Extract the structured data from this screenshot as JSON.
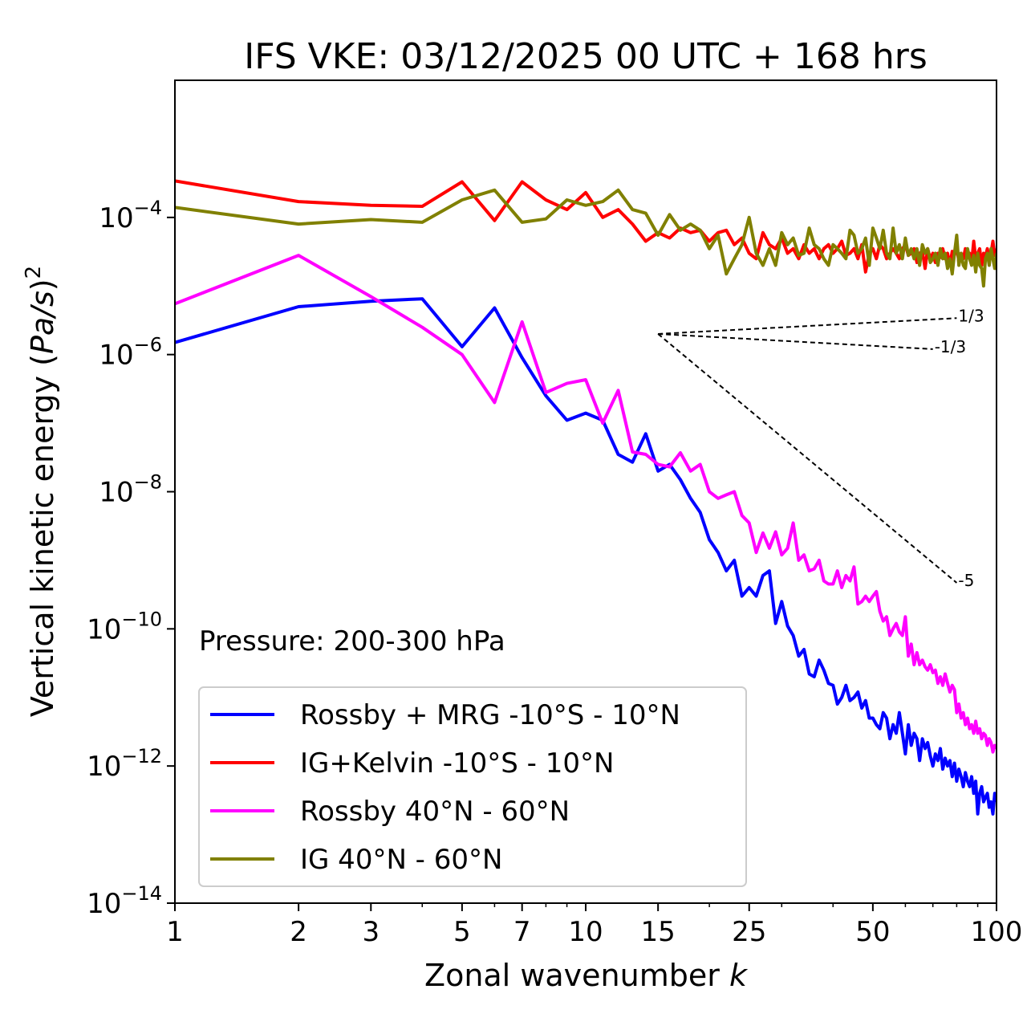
{
  "chart_data": {
    "type": "line",
    "title": "IFS VKE: 03/12/2025 00 UTC + 168 hrs",
    "xlabel_main": "Zonal wavenumber ",
    "xlabel_var": "k",
    "ylabel_main": "Vertical kinetic energy (",
    "ylabel_var": "Pa/s",
    "ylabel_close": ")",
    "ylabel_exp": "2",
    "annotation": "Pressure: 200-300 hPa",
    "x_scale": "log",
    "y_scale": "log",
    "xlim": [
      1,
      100
    ],
    "ylim": [
      1e-14,
      0.01
    ],
    "x_ticks": [
      {
        "value": 1,
        "label": "1"
      },
      {
        "value": 2,
        "label": "2"
      },
      {
        "value": 3,
        "label": "3"
      },
      {
        "value": 5,
        "label": "5"
      },
      {
        "value": 7,
        "label": "7"
      },
      {
        "value": 10,
        "label": "10"
      },
      {
        "value": 15,
        "label": "15"
      },
      {
        "value": 25,
        "label": "25"
      },
      {
        "value": 50,
        "label": "50"
      },
      {
        "value": 100,
        "label": "100"
      }
    ],
    "y_ticks": [
      {
        "value": 0.0001,
        "base": "10",
        "exp": "−4"
      },
      {
        "value": 1e-06,
        "base": "10",
        "exp": "−6"
      },
      {
        "value": 1e-08,
        "base": "10",
        "exp": "−8"
      },
      {
        "value": 1e-10,
        "base": "10",
        "exp": "−10"
      },
      {
        "value": 1e-12,
        "base": "10",
        "exp": "−12"
      },
      {
        "value": 1e-14,
        "base": "10",
        "exp": "−14"
      }
    ],
    "legend_position": "lower-left",
    "series": [
      {
        "name": "Rossby + MRG -10°S - 10°N",
        "color": "#0000ff",
        "x": [
          1,
          2,
          3,
          4,
          5,
          6,
          7,
          8,
          9,
          10,
          11,
          12,
          13,
          14,
          15,
          16,
          17,
          18,
          19,
          20,
          21,
          22,
          23,
          24,
          25,
          26,
          27,
          28,
          29,
          30,
          31,
          32,
          33,
          34,
          35,
          36,
          37,
          38,
          39,
          40,
          41,
          42,
          43,
          44,
          45,
          46,
          47,
          48,
          49,
          50,
          51,
          52,
          53,
          54,
          55,
          56,
          57,
          58,
          59,
          60,
          61,
          62,
          63,
          64,
          65,
          66,
          67,
          68,
          69,
          70,
          71,
          72,
          73,
          74,
          75,
          76,
          77,
          78,
          79,
          80,
          81,
          82,
          83,
          84,
          85,
          86,
          87,
          88,
          89,
          90,
          91,
          92,
          93,
          94,
          95,
          96,
          97,
          98,
          99,
          100
        ],
        "y": [
          1.5e-06,
          5e-06,
          6e-06,
          6.5e-06,
          1.3e-06,
          4.8e-06,
          9e-07,
          2.5e-07,
          1.1e-07,
          1.4e-07,
          1.1e-07,
          3.5e-08,
          2.7e-08,
          7e-08,
          2e-08,
          2.5e-08,
          1.5e-08,
          8e-09,
          5e-09,
          2e-09,
          1.3e-09,
          7e-10,
          1e-09,
          3e-10,
          4e-10,
          3e-10,
          6e-10,
          7e-10,
          1.2e-10,
          2.5e-10,
          1.1e-10,
          8e-11,
          4e-11,
          5e-11,
          2.2e-11,
          2e-11,
          3.5e-11,
          2.5e-11,
          1.6e-11,
          1.5e-11,
          8e-12,
          1e-11,
          1.5e-11,
          9e-12,
          1e-11,
          1.2e-11,
          7e-12,
          9e-12,
          5e-12,
          5e-12,
          4e-12,
          3.5e-12,
          6e-12,
          5e-12,
          2.5e-12,
          4e-12,
          3e-12,
          6e-12,
          3e-12,
          1.5e-12,
          4e-12,
          2e-12,
          3e-12,
          2.5e-12,
          1.2e-12,
          2.5e-12,
          1.8e-12,
          2.2e-12,
          1.4e-12,
          1e-12,
          1.5e-12,
          1.2e-12,
          1.8e-12,
          9e-13,
          1.3e-12,
          1e-12,
          1.2e-12,
          7e-13,
          1.1e-12,
          6e-13,
          9e-13,
          7e-13,
          5e-13,
          8e-13,
          6e-13,
          5e-13,
          7e-13,
          4e-13,
          6e-13,
          2e-13,
          4e-13,
          5e-13,
          3e-13,
          3.5e-13,
          4e-13,
          2.5e-13,
          3e-13,
          2e-13,
          4e-13,
          3e-13
        ]
      },
      {
        "name": "IG+Kelvin -10°S - 10°N",
        "color": "#ff0000",
        "x": [
          1,
          2,
          3,
          4,
          5,
          6,
          7,
          8,
          9,
          10,
          11,
          12,
          13,
          14,
          15,
          16,
          17,
          18,
          19,
          20,
          21,
          22,
          23,
          24,
          25,
          26,
          27,
          28,
          29,
          30,
          31,
          32,
          33,
          34,
          35,
          36,
          37,
          38,
          39,
          40,
          41,
          42,
          43,
          44,
          45,
          46,
          47,
          48,
          49,
          50,
          51,
          52,
          53,
          54,
          55,
          56,
          57,
          58,
          59,
          60,
          61,
          62,
          63,
          64,
          65,
          66,
          67,
          68,
          69,
          70,
          71,
          72,
          73,
          74,
          75,
          76,
          77,
          78,
          79,
          80,
          81,
          82,
          83,
          84,
          85,
          86,
          87,
          88,
          89,
          90,
          91,
          92,
          93,
          94,
          95,
          96,
          97,
          98,
          99,
          100
        ],
        "y": [
          0.00034,
          0.00017,
          0.00015,
          0.000145,
          0.00033,
          9e-05,
          0.00033,
          0.00018,
          0.00013,
          0.00023,
          0.0001,
          0.00013,
          8e-05,
          4.5e-05,
          6e-05,
          5e-05,
          7e-05,
          6e-05,
          6.5e-05,
          4.5e-05,
          6e-05,
          6.5e-05,
          4e-05,
          5e-05,
          3e-05,
          2.5e-05,
          6e-05,
          4e-05,
          3.5e-05,
          5e-05,
          3e-05,
          3.5e-05,
          2.5e-05,
          4e-05,
          3e-05,
          3.5e-05,
          2.5e-05,
          3.5e-05,
          4e-05,
          3e-05,
          3.5e-05,
          4.5e-05,
          2.8e-05,
          3e-05,
          3.5e-05,
          2.5e-05,
          4e-05,
          1.6e-05,
          3e-05,
          3.5e-05,
          2.5e-05,
          4e-05,
          3.5e-05,
          2.5e-05,
          3e-05,
          3.5e-05,
          3e-05,
          2.5e-05,
          3.5e-05,
          4e-05,
          2.8e-05,
          3e-05,
          3.5e-05,
          2.2e-05,
          3e-05,
          3.2e-05,
          1.8e-05,
          3.5e-05,
          2.5e-05,
          3e-05,
          2.2e-05,
          3e-05,
          2.6e-05,
          3.5e-05,
          2.5e-05,
          3e-05,
          2e-05,
          3.2e-05,
          2.8e-05,
          4e-05,
          2.2e-05,
          3e-05,
          2.5e-05,
          3.5e-05,
          2.8e-05,
          3e-05,
          2.2e-05,
          4.5e-05,
          2.5e-05,
          3e-05,
          3.5e-05,
          2e-05,
          3e-05,
          2.7e-05,
          3.5e-05,
          2.4e-05,
          3e-05,
          4.5e-05,
          2.8e-05,
          3.5e-05
        ]
      },
      {
        "name": "Rossby 40°N - 60°N",
        "color": "#ff00ff",
        "x": [
          1,
          2,
          3,
          4,
          5,
          6,
          7,
          8,
          9,
          10,
          11,
          12,
          13,
          14,
          15,
          16,
          17,
          18,
          19,
          20,
          21,
          22,
          23,
          24,
          25,
          26,
          27,
          28,
          29,
          30,
          31,
          32,
          33,
          34,
          35,
          36,
          37,
          38,
          39,
          40,
          41,
          42,
          43,
          44,
          45,
          46,
          47,
          48,
          49,
          50,
          51,
          52,
          53,
          54,
          55,
          56,
          57,
          58,
          59,
          60,
          61,
          62,
          63,
          64,
          65,
          66,
          67,
          68,
          69,
          70,
          71,
          72,
          73,
          74,
          75,
          76,
          77,
          78,
          79,
          80,
          81,
          82,
          83,
          84,
          85,
          86,
          87,
          88,
          89,
          90,
          91,
          92,
          93,
          94,
          95,
          96,
          97,
          98,
          99,
          100
        ],
        "y": [
          5.5e-06,
          2.8e-05,
          7e-06,
          2.5e-06,
          1e-06,
          2e-07,
          3e-06,
          2.8e-07,
          3.8e-07,
          4.3e-07,
          1e-07,
          3e-07,
          3.8e-08,
          3.5e-08,
          2.5e-08,
          2.3e-08,
          3.7e-08,
          2e-08,
          2.5e-08,
          1e-08,
          8e-09,
          9e-09,
          1e-08,
          4.5e-09,
          3.5e-09,
          1.3e-09,
          2.5e-09,
          1.5e-09,
          2.6e-09,
          1.2e-09,
          1.5e-09,
          3.5e-09,
          1e-09,
          1.2e-09,
          7e-10,
          7.5e-10,
          1e-09,
          5e-10,
          4.5e-10,
          4.5e-10,
          7e-10,
          4e-10,
          6e-10,
          5e-10,
          8e-10,
          2.3e-10,
          2.5e-10,
          3e-10,
          2.5e-10,
          3e-10,
          3.5e-10,
          1.8e-10,
          1.3e-10,
          1.5e-10,
          8e-11,
          1e-10,
          1.2e-10,
          9e-11,
          8e-11,
          1.5e-10,
          4e-11,
          6e-11,
          3e-11,
          4.5e-11,
          3e-11,
          3.5e-11,
          2.8e-11,
          2.5e-11,
          3e-11,
          2.3e-11,
          2.5e-11,
          1.6e-11,
          2e-11,
          1.5e-11,
          2.2e-11,
          1.6e-11,
          1.2e-11,
          1.5e-11,
          1.3e-11,
          6e-12,
          8e-12,
          5e-12,
          6e-12,
          4e-12,
          5e-12,
          3.5e-12,
          4e-12,
          3e-12,
          4.5e-12,
          3e-12,
          3.5e-12,
          2.5e-12,
          3e-12,
          2.8e-12,
          2e-12,
          2.5e-12,
          2.2e-12,
          1.6e-12,
          2e-12,
          1.8e-12
        ]
      },
      {
        "name": "IG 40°N - 60°N",
        "color": "#808000",
        "x": [
          1,
          2,
          3,
          4,
          5,
          6,
          7,
          8,
          9,
          10,
          11,
          12,
          13,
          14,
          15,
          16,
          17,
          18,
          19,
          20,
          21,
          22,
          23,
          24,
          25,
          26,
          27,
          28,
          29,
          30,
          31,
          32,
          33,
          34,
          35,
          36,
          37,
          38,
          39,
          40,
          41,
          42,
          43,
          44,
          45,
          46,
          47,
          48,
          49,
          50,
          51,
          52,
          53,
          54,
          55,
          56,
          57,
          58,
          59,
          60,
          61,
          62,
          63,
          64,
          65,
          66,
          67,
          68,
          69,
          70,
          71,
          72,
          73,
          74,
          75,
          76,
          77,
          78,
          79,
          80,
          81,
          82,
          83,
          84,
          85,
          86,
          87,
          88,
          89,
          90,
          91,
          92,
          93,
          94,
          95,
          96,
          97,
          98,
          99,
          100
        ],
        "y": [
          0.00014,
          8e-05,
          9.3e-05,
          8.5e-05,
          0.00018,
          0.00025,
          8.5e-05,
          9.5e-05,
          0.00018,
          0.00015,
          0.00017,
          0.00025,
          0.00013,
          0.000115,
          5.5e-05,
          0.00011,
          6.5e-05,
          8e-05,
          6.5e-05,
          3.5e-05,
          5.5e-05,
          1.5e-05,
          2.5e-05,
          4e-05,
          0.0001,
          3e-05,
          2e-05,
          3.5e-05,
          2e-05,
          6e-05,
          4e-05,
          5e-05,
          2.8e-05,
          3e-05,
          7e-05,
          4e-05,
          3.5e-05,
          2.5e-05,
          2e-05,
          4e-05,
          3.5e-05,
          3e-05,
          2.5e-05,
          6.5e-05,
          5.5e-05,
          3e-05,
          3.5e-05,
          5e-05,
          2e-05,
          7e-05,
          5e-05,
          3.5e-05,
          6.5e-05,
          3e-05,
          2.5e-05,
          7e-05,
          3e-05,
          4e-05,
          2.5e-05,
          5e-05,
          2.8e-05,
          3.5e-05,
          2.5e-05,
          3.5e-05,
          2e-05,
          4e-05,
          3e-05,
          3.5e-05,
          2.2e-05,
          2.5e-05,
          3e-05,
          2e-05,
          3.5e-05,
          2.5e-05,
          3e-05,
          1.8e-05,
          2.5e-05,
          1.5e-05,
          3e-05,
          5.5e-05,
          2e-05,
          3e-05,
          2e-05,
          1.8e-05,
          3.5e-05,
          2.5e-05,
          2e-05,
          2.8e-05,
          1.6e-05,
          3e-05,
          2e-05,
          1.8e-05,
          1e-05,
          2.5e-05,
          3e-05,
          2e-05,
          3.5e-05,
          2.5e-05,
          1.8e-05,
          3e-05
        ]
      }
    ],
    "reference_lines": [
      {
        "slope_label": "1/3",
        "x": [
          15,
          80
        ],
        "y": [
          2e-06,
          3.4e-06
        ]
      },
      {
        "slope_label": "-1/3",
        "x": [
          15,
          70
        ],
        "y": [
          2e-06,
          1.2e-06
        ]
      },
      {
        "slope_label": "-5",
        "x": [
          15,
          80
        ],
        "y": [
          2e-06,
          4.7e-10
        ]
      }
    ]
  }
}
